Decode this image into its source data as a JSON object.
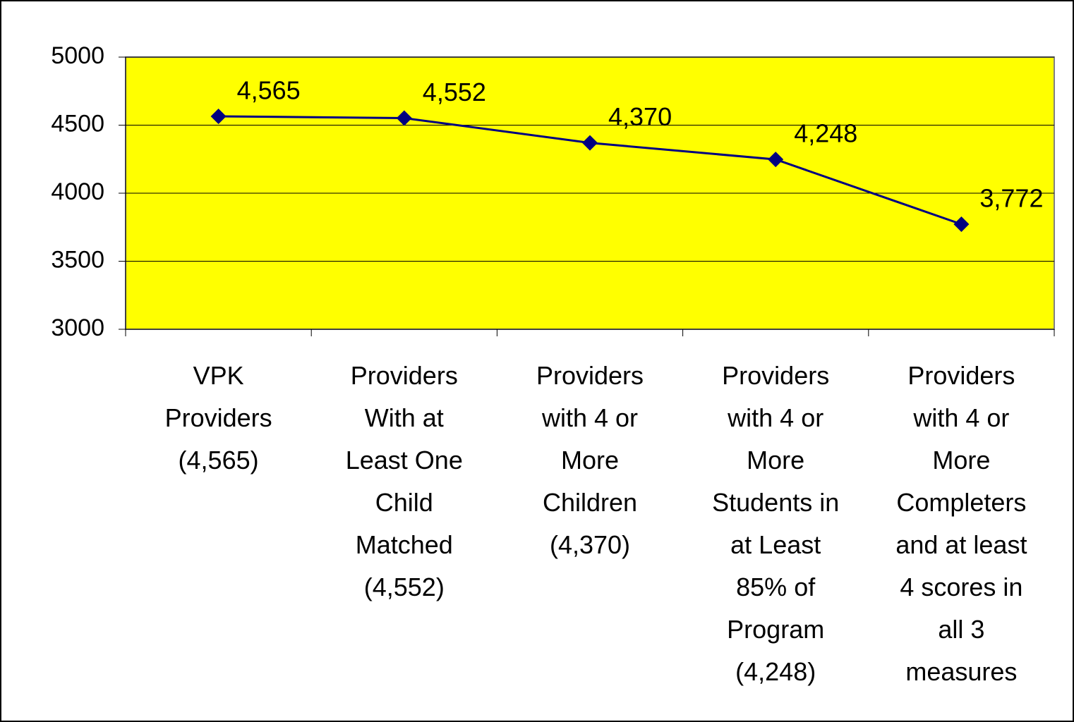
{
  "chart_data": {
    "type": "line",
    "categories": [
      "VPK Providers (4,565)",
      "Providers With at Least One Child Matched (4,552)",
      "Providers with 4 or More Children (4,370)",
      "Providers with 4 or More Students in at Least 85% of Program (4,248)",
      "Providers with 4 or More Completers and at least 4 scores in all 3 measures"
    ],
    "values": [
      4565,
      4552,
      4370,
      4248,
      3772
    ],
    "value_labels": [
      "4,565",
      "4,552",
      "4,370",
      "4,248",
      "3,772"
    ],
    "color": "#000080",
    "plot_background": "#ffff00",
    "ylim": [
      3000,
      5000
    ],
    "yticks": [
      3000,
      3500,
      4000,
      4500,
      5000
    ],
    "grid": true
  }
}
